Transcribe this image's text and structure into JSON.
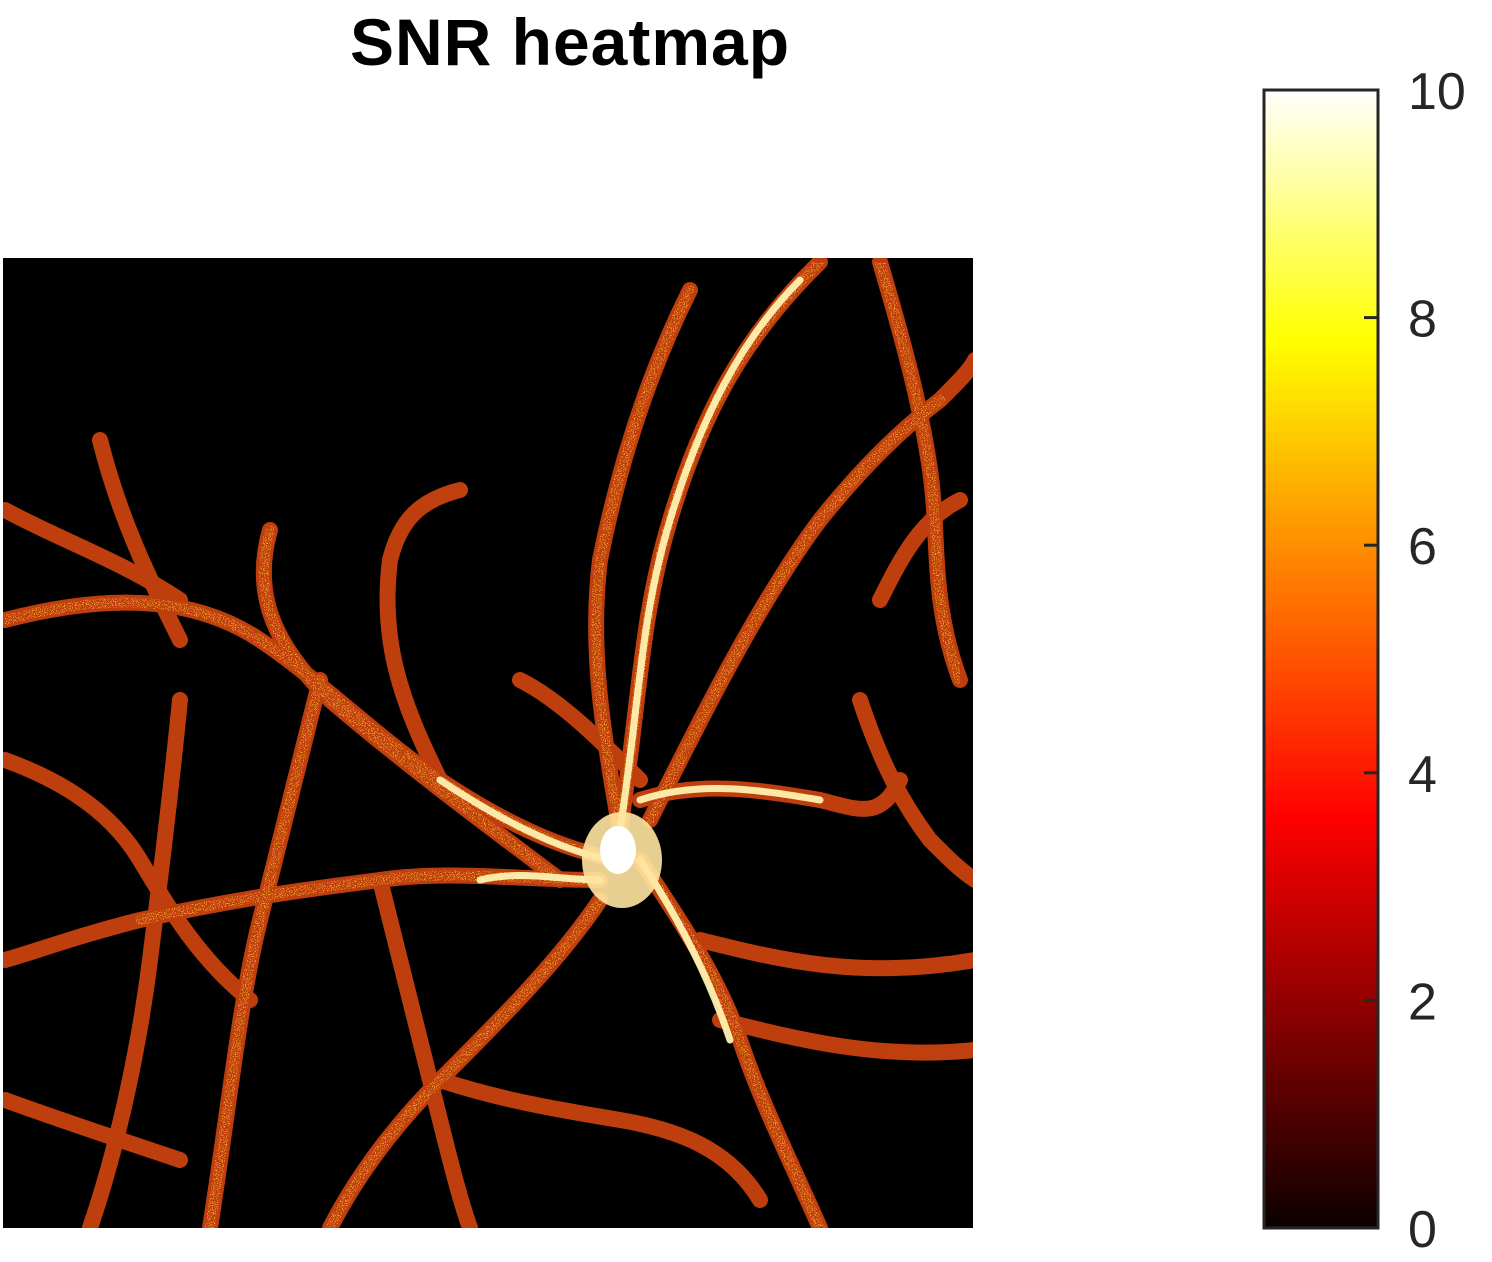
{
  "chart_data": {
    "type": "heatmap",
    "title": "SNR heatmap",
    "xlabel": "",
    "ylabel": "",
    "colormap": "hot",
    "colorbar": {
      "range": [
        0,
        10
      ],
      "ticks": [
        0,
        2,
        4,
        6,
        8,
        10
      ],
      "tick_labels": [
        "0",
        "2",
        "4",
        "6",
        "8",
        "10"
      ]
    },
    "image_description": "fluorescence SNR map of branching neuronal dendrites; brightest (~10) at central soma, branches ~4-7, background ~0",
    "colors": {
      "background": "#000000",
      "low": "#0b0000",
      "mid": "#ff2000",
      "high": "#ffff00",
      "max": "#ffffff"
    }
  }
}
